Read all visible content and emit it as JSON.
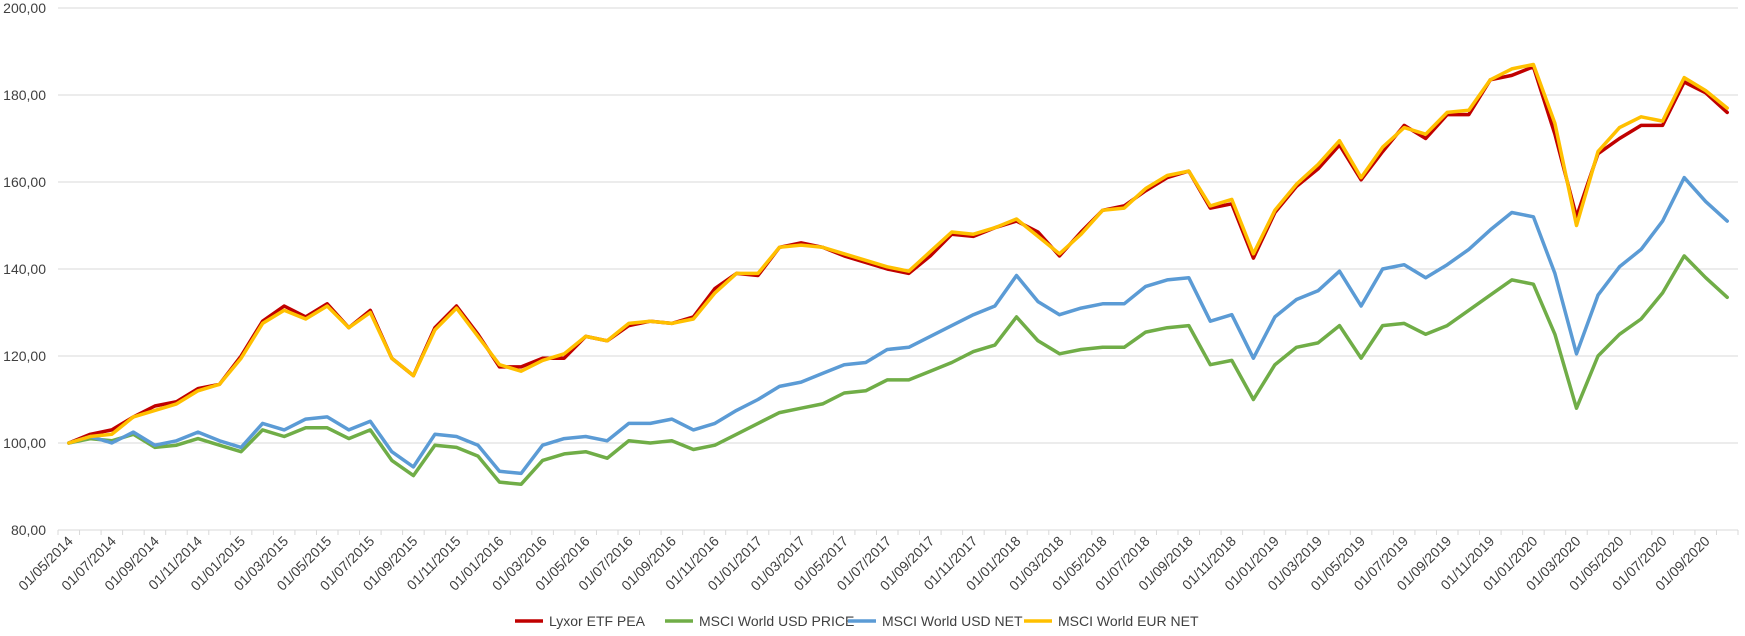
{
  "chart_data": {
    "type": "line",
    "title": "",
    "xlabel": "",
    "ylabel": "",
    "ylim": [
      80,
      200
    ],
    "y_ticks": [
      "80,00",
      "100,00",
      "120,00",
      "140,00",
      "160,00",
      "180,00",
      "200,00"
    ],
    "grid": true,
    "legend_position": "bottom",
    "x": [
      "01/05/2014",
      "01/06/2014",
      "01/07/2014",
      "01/08/2014",
      "01/09/2014",
      "01/10/2014",
      "01/11/2014",
      "01/12/2014",
      "01/01/2015",
      "01/02/2015",
      "01/03/2015",
      "01/04/2015",
      "01/05/2015",
      "01/06/2015",
      "01/07/2015",
      "01/08/2015",
      "01/09/2015",
      "01/10/2015",
      "01/11/2015",
      "01/12/2015",
      "01/01/2016",
      "01/02/2016",
      "01/03/2016",
      "01/04/2016",
      "01/05/2016",
      "01/06/2016",
      "01/07/2016",
      "01/08/2016",
      "01/09/2016",
      "01/10/2016",
      "01/11/2016",
      "01/12/2016",
      "01/01/2017",
      "01/02/2017",
      "01/03/2017",
      "01/04/2017",
      "01/05/2017",
      "01/06/2017",
      "01/07/2017",
      "01/08/2017",
      "01/09/2017",
      "01/10/2017",
      "01/11/2017",
      "01/12/2017",
      "01/01/2018",
      "01/02/2018",
      "01/03/2018",
      "01/04/2018",
      "01/05/2018",
      "01/06/2018",
      "01/07/2018",
      "01/08/2018",
      "01/09/2018",
      "01/10/2018",
      "01/11/2018",
      "01/12/2018",
      "01/01/2019",
      "01/02/2019",
      "01/03/2019",
      "01/04/2019",
      "01/05/2019",
      "01/06/2019",
      "01/07/2019",
      "01/08/2019",
      "01/09/2019",
      "01/10/2019",
      "01/11/2019",
      "01/12/2019",
      "01/01/2020",
      "01/02/2020",
      "01/03/2020",
      "01/04/2020",
      "01/05/2020",
      "01/06/2020",
      "01/07/2020",
      "01/08/2020",
      "01/09/2020",
      "01/10/2020"
    ],
    "x_tick_labels": [
      "01/05/2014",
      "01/07/2014",
      "01/09/2014",
      "01/11/2014",
      "01/01/2015",
      "01/03/2015",
      "01/05/2015",
      "01/07/2015",
      "01/09/2015",
      "01/11/2015",
      "01/01/2016",
      "01/03/2016",
      "01/05/2016",
      "01/07/2016",
      "01/09/2016",
      "01/11/2016",
      "01/01/2017",
      "01/03/2017",
      "01/05/2017",
      "01/07/2017",
      "01/09/2017",
      "01/11/2017",
      "01/01/2018",
      "01/03/2018",
      "01/05/2018",
      "01/07/2018",
      "01/09/2018",
      "01/11/2018",
      "01/01/2019",
      "01/03/2019",
      "01/05/2019",
      "01/07/2019",
      "01/09/2019",
      "01/11/2019",
      "01/01/2020",
      "01/03/2020",
      "01/05/2020",
      "01/07/2020",
      "01/09/2020"
    ],
    "series": [
      {
        "name": "Lyxor ETF PEA",
        "color": "#c00000",
        "values": [
          100,
          102,
          103,
          106,
          108.5,
          109.5,
          112.5,
          113.5,
          120,
          128,
          131.5,
          129,
          132,
          126.5,
          130.5,
          119.5,
          115.5,
          126.5,
          131.5,
          125,
          117.5,
          117.5,
          119.5,
          119.5,
          124.5,
          123.5,
          127,
          128,
          127.5,
          129,
          135.5,
          139,
          138.5,
          145,
          146,
          145,
          143,
          141.5,
          140,
          139,
          143,
          148,
          147.5,
          149.5,
          151,
          148.5,
          143,
          148.5,
          153.5,
          154.5,
          158,
          161,
          162.5,
          154,
          155,
          142.5,
          153,
          159,
          163,
          168.5,
          160.5,
          167,
          173,
          170,
          175.5,
          175.5,
          183.5,
          184.5,
          186.5,
          171,
          152,
          166.5,
          170,
          173,
          173,
          183,
          180.5,
          176
        ]
      },
      {
        "name": "MSCI World USD PRICE",
        "color": "#70ad47",
        "values": [
          100,
          101,
          100.5,
          102,
          99,
          99.5,
          101,
          99.5,
          98,
          103,
          101.5,
          103.5,
          103.5,
          101,
          103,
          96,
          92.5,
          99.5,
          99,
          97,
          91,
          90.5,
          96,
          97.5,
          98,
          96.5,
          100.5,
          100,
          100.5,
          98.5,
          99.5,
          102,
          104.5,
          107,
          108,
          109,
          111.5,
          112,
          114.5,
          114.5,
          116.5,
          118.5,
          121,
          122.5,
          129,
          123.5,
          120.5,
          121.5,
          122,
          122,
          125.5,
          126.5,
          127,
          118,
          119,
          110,
          118,
          122,
          123,
          127,
          119.5,
          127,
          127.5,
          125,
          127,
          130.5,
          134,
          137.5,
          136.5,
          125,
          108,
          120,
          125,
          128.5,
          134.5,
          143,
          138,
          133.5
        ]
      },
      {
        "name": "MSCI World USD NET",
        "color": "#5b9bd5",
        "values": [
          100,
          101.5,
          100,
          102.5,
          99.5,
          100.5,
          102.5,
          100.5,
          99,
          104.5,
          103,
          105.5,
          106,
          103,
          105,
          98,
          94.5,
          102,
          101.5,
          99.5,
          93.5,
          93,
          99.5,
          101,
          101.5,
          100.5,
          104.5,
          104.5,
          105.5,
          103,
          104.5,
          107.5,
          110,
          113,
          114,
          116,
          118,
          118.5,
          121.5,
          122,
          124.5,
          127,
          129.5,
          131.5,
          138.5,
          132.5,
          129.5,
          131,
          132,
          132,
          136,
          137.5,
          138,
          128,
          129.5,
          119.5,
          129,
          133,
          135,
          139.5,
          131.5,
          140,
          141,
          138,
          141,
          144.5,
          149,
          153,
          152,
          139,
          120.5,
          134,
          140.5,
          144.5,
          151,
          161,
          155.5,
          151
        ]
      },
      {
        "name": "MSCI World EUR NET",
        "color": "#ffc000",
        "values": [
          100,
          101.5,
          102,
          106,
          107.5,
          109,
          112,
          113.5,
          119.5,
          127.5,
          130.5,
          128.5,
          131.5,
          126.5,
          130,
          119.5,
          115.5,
          126,
          131,
          124.5,
          118,
          116.5,
          119,
          120.5,
          124.5,
          123.5,
          127.5,
          128,
          127.5,
          128.5,
          134.5,
          139,
          139,
          145,
          145.5,
          145,
          143.5,
          142,
          140.5,
          139.5,
          144,
          148.5,
          148,
          149.5,
          151.5,
          147.5,
          143.5,
          148,
          153.5,
          154,
          158.5,
          161.5,
          162.5,
          154.5,
          156,
          143.5,
          153.5,
          159.5,
          164,
          169.5,
          161,
          168,
          172.5,
          171,
          176,
          176.5,
          183.5,
          186,
          187,
          173.5,
          150,
          167,
          172.5,
          175,
          174,
          184,
          181,
          177
        ]
      }
    ]
  }
}
